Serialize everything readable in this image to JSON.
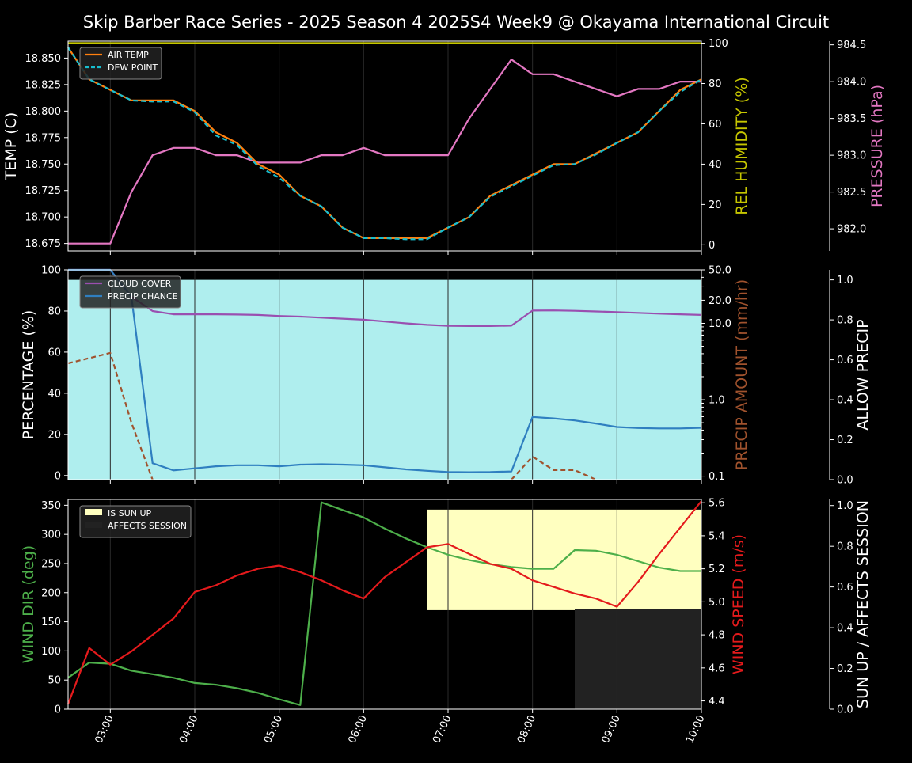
{
  "title": "Skip Barber Race Series - 2025 Season 4 2025S4 Week9 @ Okayama International Circuit",
  "colors": {
    "air_temp": "#ff7f0e",
    "dew_point": "#17becf",
    "humidity": "#c6c600",
    "pressure": "#e377c2",
    "cloud": "#9a4fb0",
    "precip_chance": "#2f7fc0",
    "precip_amount": "#a0522d",
    "allow_precip_fill": "#afeeee",
    "wind_dir": "#4daf4a",
    "wind_speed": "#e41a1c",
    "sun_up": "#ffffc0",
    "affects_session": "#222222"
  },
  "x_tick_labels": [
    "03:00",
    "04:00",
    "05:00",
    "06:00",
    "07:00",
    "08:00",
    "09:00",
    "10:00"
  ],
  "chart_data": [
    {
      "type": "line",
      "panel": "temperature",
      "x_hours": [
        2.5,
        2.75,
        3.0,
        3.25,
        3.5,
        3.75,
        4.0,
        4.25,
        4.5,
        4.75,
        5.0,
        5.25,
        5.5,
        5.75,
        6.0,
        6.25,
        6.5,
        6.75,
        7.0,
        7.25,
        7.5,
        7.75,
        8.0,
        8.25,
        8.5,
        8.75,
        9.0,
        9.25,
        9.5,
        9.75,
        10.0
      ],
      "xlim": [
        2.5,
        10.0
      ],
      "ylabel": "TEMP (C)",
      "ylim": [
        18.668,
        18.866
      ],
      "yticks": [
        "18.675",
        "18.700",
        "18.725",
        "18.750",
        "18.775",
        "18.800",
        "18.825",
        "18.850"
      ],
      "y2label": "REL HUMIDITY (%)",
      "y2lim": [
        -3,
        101
      ],
      "y2ticks": [
        "0",
        "20",
        "40",
        "60",
        "80",
        "100"
      ],
      "y3label": "PRESSURE (hPa)",
      "y3lim": [
        981.7,
        984.55
      ],
      "y3ticks": [
        "982.0",
        "982.5",
        "983.0",
        "983.5",
        "984.0",
        "984.5"
      ],
      "legend_position": "upper-left",
      "series": [
        {
          "name": "AIR TEMP",
          "axis": "temp",
          "values": [
            18.86,
            18.83,
            18.82,
            18.81,
            18.81,
            18.81,
            18.8,
            18.78,
            18.77,
            18.75,
            18.74,
            18.72,
            18.71,
            18.69,
            18.68,
            18.68,
            18.68,
            18.68,
            18.69,
            18.7,
            18.72,
            18.73,
            18.74,
            18.75,
            18.75,
            18.76,
            18.77,
            18.78,
            18.8,
            18.82,
            18.83
          ]
        },
        {
          "name": "DEW POINT",
          "axis": "temp",
          "values": [
            18.86,
            18.83,
            18.82,
            18.81,
            18.809,
            18.809,
            18.799,
            18.777,
            18.768,
            18.748,
            18.737,
            18.72,
            18.71,
            18.69,
            18.68,
            18.68,
            18.679,
            18.679,
            18.69,
            18.7,
            18.719,
            18.729,
            18.739,
            18.749,
            18.75,
            18.759,
            18.77,
            18.78,
            18.8,
            18.818,
            18.83
          ]
        },
        {
          "axis": "humidity",
          "values": [
            100,
            100,
            100,
            100,
            100,
            100,
            100,
            100,
            100,
            100,
            100,
            100,
            100,
            100,
            100,
            100,
            100,
            100,
            100,
            100,
            100,
            100,
            100,
            100,
            100,
            100,
            100,
            100,
            100,
            100,
            100
          ]
        },
        {
          "axis": "pressure",
          "values": [
            981.8,
            981.8,
            981.8,
            982.5,
            983.0,
            983.1,
            983.1,
            983.0,
            983.0,
            982.9,
            982.9,
            982.9,
            983.0,
            983.0,
            983.1,
            983.0,
            983.0,
            983.0,
            983.0,
            983.5,
            983.9,
            984.3,
            984.1,
            984.1,
            984.0,
            983.9,
            983.8,
            983.9,
            983.9,
            984.0,
            984.0
          ]
        }
      ]
    },
    {
      "type": "line",
      "panel": "precipitation",
      "x_hours": [
        2.5,
        2.75,
        3.0,
        3.25,
        3.5,
        3.75,
        4.0,
        4.25,
        4.5,
        4.75,
        5.0,
        5.25,
        5.5,
        5.75,
        6.0,
        6.25,
        6.5,
        6.75,
        7.0,
        7.25,
        7.5,
        7.75,
        8.0,
        8.25,
        8.5,
        8.75,
        9.0,
        9.25,
        9.5,
        9.75,
        10.0
      ],
      "xlim": [
        2.5,
        10.0
      ],
      "ylabel": "PERCENTAGE (%)",
      "ylim": [
        -2,
        100
      ],
      "yticks": [
        "0",
        "20",
        "40",
        "60",
        "80",
        "100"
      ],
      "y2label": "PRECIP AMOUNT (mm/hr)",
      "y2scale": "log",
      "y2lim": [
        0.09,
        50
      ],
      "y2ticks": [
        "0.1",
        "1.0",
        "10.0",
        "20.0",
        "50.0"
      ],
      "y3label": "ALLOW PRECIP",
      "y3lim": [
        0,
        1.05
      ],
      "y3ticks": [
        "0.0",
        "0.2",
        "0.4",
        "0.6",
        "0.8",
        "1.0"
      ],
      "legend_position": "upper-left",
      "series": [
        {
          "name": "CLOUD COVER",
          "axis": "percent",
          "values": [
            100,
            100,
            100,
            87,
            80,
            78.4,
            78.4,
            78.4,
            78.3,
            78.1,
            77.6,
            77.3,
            76.8,
            76.3,
            75.8,
            74.9,
            74,
            73.3,
            72.8,
            72.7,
            72.7,
            72.9,
            80.2,
            80.3,
            80.1,
            79.8,
            79.5,
            79.1,
            78.7,
            78.4,
            78.1
          ]
        },
        {
          "name": "PRECIP CHANCE",
          "axis": "percent",
          "values": [
            100,
            100,
            100,
            87,
            6,
            2.5,
            3.5,
            4.5,
            5,
            5,
            4.5,
            5.3,
            5.5,
            5.3,
            5,
            4,
            3,
            2.3,
            1.7,
            1.6,
            1.7,
            2,
            28.5,
            27.8,
            26.8,
            25.3,
            23.6,
            23.1,
            22.9,
            22.9,
            23.2
          ]
        },
        {
          "axis": "amount",
          "values": [
            3.0,
            3.5,
            4.1,
            0.5,
            0.05,
            0.05,
            0.05,
            0.05,
            0.05,
            0.05,
            0.05,
            0.05,
            0.05,
            0.05,
            0.05,
            0.05,
            0.05,
            0.05,
            0.05,
            0.05,
            0.05,
            0.05,
            0.18,
            0.12,
            0.12,
            0.05,
            0.05,
            0.05,
            0.05,
            0.05,
            0.05
          ]
        },
        {
          "axis": "allow",
          "values": [
            1,
            1,
            1,
            1,
            1,
            1,
            1,
            1,
            1,
            1,
            1,
            1,
            1,
            1,
            1,
            1,
            1,
            1,
            1,
            1,
            1,
            1,
            1,
            1,
            1,
            1,
            1,
            1,
            1,
            1,
            1
          ]
        }
      ]
    },
    {
      "type": "line",
      "panel": "wind",
      "x_hours": [
        2.5,
        2.75,
        3.0,
        3.25,
        3.5,
        3.75,
        4.0,
        4.25,
        4.5,
        4.75,
        5.0,
        5.25,
        5.5,
        5.75,
        6.0,
        6.25,
        6.5,
        6.75,
        7.0,
        7.25,
        7.5,
        7.75,
        8.0,
        8.25,
        8.5,
        8.75,
        9.0,
        9.25,
        9.5,
        9.75,
        10.0
      ],
      "xlim": [
        2.5,
        10.0
      ],
      "ylabel": "WIND DIR (deg)",
      "ylim": [
        0,
        360
      ],
      "yticks": [
        "0",
        "50",
        "100",
        "150",
        "200",
        "250",
        "300",
        "350"
      ],
      "y2label": "WIND SPEED (m/s)",
      "y2lim": [
        4.35,
        5.62
      ],
      "y2ticks": [
        "4.4",
        "4.6",
        "4.8",
        "5.0",
        "5.2",
        "5.4",
        "5.6"
      ],
      "y3label": "SUN UP / AFFECTS SESSION",
      "y3lim": [
        0,
        1.03
      ],
      "y3ticks": [
        "0.0",
        "0.2",
        "0.4",
        "0.6",
        "0.8",
        "1.0"
      ],
      "legend_position": "upper-left",
      "legend": [
        "IS SUN UP",
        "AFFECTS SESSION"
      ],
      "series": [
        {
          "name": "WIND DIR",
          "axis": "dir",
          "values": [
            54,
            80,
            78,
            66,
            60,
            54,
            45,
            42,
            36,
            28,
            17,
            7,
            355,
            342,
            329,
            310,
            293,
            278,
            265,
            256,
            249,
            244,
            241,
            241,
            273,
            272,
            265,
            254,
            243,
            237,
            237
          ]
        },
        {
          "name": "WIND SPEED",
          "axis": "speed",
          "values": [
            4.38,
            4.72,
            4.62,
            4.7,
            4.8,
            4.9,
            5.06,
            5.1,
            5.16,
            5.2,
            5.22,
            5.18,
            5.13,
            5.07,
            5.02,
            5.15,
            5.24,
            5.33,
            5.35,
            5.29,
            5.23,
            5.2,
            5.13,
            5.09,
            5.05,
            5.02,
            4.97,
            5.12,
            5.29,
            5.45,
            5.61
          ]
        }
      ],
      "sun_up": {
        "start": 6.75,
        "end": 10.0,
        "level": 0.98
      },
      "affects_session": {
        "start": 8.5,
        "end": 10.0,
        "level": 0.49
      }
    }
  ]
}
